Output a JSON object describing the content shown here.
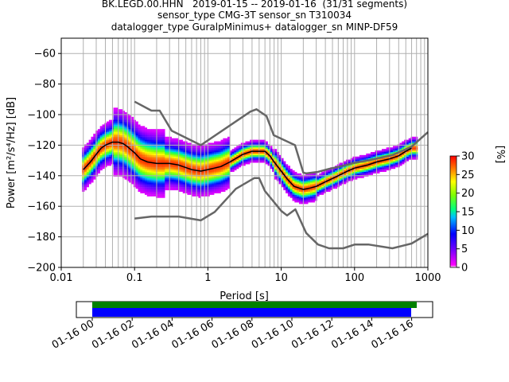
{
  "title_lines": [
    "BK.LEGD.00.HHN   2019-01-15 -- 2019-01-16  (31/31 segments)",
    "sensor_type CMG-3T sensor_sn T310034",
    "datalogger_type GuralpMinimus+ datalogger_sn MINP-DF59"
  ],
  "chart_data": {
    "type": "heatmap",
    "xlabel": "Period [s]",
    "ylabel": "Power [m²/s⁴/Hz] [dB]",
    "xscale": "log",
    "xlim": [
      0.01,
      1000
    ],
    "ylim": [
      -200,
      -50
    ],
    "xticks": [
      0.01,
      0.1,
      1,
      10,
      100,
      1000
    ],
    "xtick_labels": [
      "0.01",
      "0.1",
      "1",
      "10",
      "100",
      "1000"
    ],
    "yticks": [
      -200,
      -180,
      -160,
      -140,
      -120,
      -100,
      -80,
      -60
    ],
    "ytick_labels": [
      "−200",
      "−180",
      "−160",
      "−140",
      "−120",
      "−100",
      "−80",
      "−60"
    ],
    "grid": true,
    "colorbar": {
      "label": "[%]",
      "range": [
        0,
        30
      ],
      "ticks": [
        0,
        5,
        10,
        15,
        20,
        25,
        30
      ],
      "tick_labels": [
        "0",
        "5",
        "10",
        "15",
        "20",
        "25",
        "30"
      ]
    },
    "mode_curve": {
      "period": [
        0.02,
        0.025,
        0.03,
        0.035,
        0.04,
        0.05,
        0.06,
        0.07,
        0.08,
        0.1,
        0.12,
        0.15,
        0.2,
        0.3,
        0.4,
        0.6,
        0.8,
        1.0,
        1.5,
        2.0,
        3.0,
        4.0,
        5.0,
        6.0,
        7.0,
        8.0,
        10.0,
        12.0,
        15.0,
        20.0,
        25.0,
        30.0,
        40.0,
        60.0,
        80.0,
        100.0,
        150.0,
        200.0,
        300.0,
        400.0,
        500.0,
        600.0
      ],
      "power": [
        -136,
        -131,
        -126,
        -122,
        -120,
        -118,
        -118,
        -119,
        -121,
        -125,
        -129,
        -131,
        -132,
        -132,
        -133,
        -136,
        -137,
        -136,
        -134,
        -131,
        -126,
        -124,
        -124,
        -124,
        -127,
        -131,
        -137,
        -142,
        -147,
        -149,
        -148,
        -147,
        -144,
        -140,
        -137,
        -135,
        -133,
        -131,
        -129,
        -127,
        -124,
        -122
      ]
    },
    "reference_curves": [
      {
        "period": [
          0.1,
          0.17,
          0.22,
          0.32,
          0.8,
          3.8,
          4.6,
          6.3,
          7.9,
          15.4,
          20,
          21.9,
          31.6,
          45,
          70,
          101,
          154,
          328,
          600,
          1000
        ],
        "power": [
          -91.5,
          -97.4,
          -97.4,
          -110.5,
          -120,
          -98,
          -96.5,
          -101,
          -113.5,
          -120,
          -138,
          -138.5,
          -137.5,
          -135.5,
          -133.5,
          -131.5,
          -130,
          -126.5,
          -121,
          -111.5
        ]
      },
      {
        "period": [
          0.1,
          0.17,
          0.4,
          0.8,
          1.24,
          2.4,
          4.3,
          5,
          6,
          10,
          12,
          15.6,
          21.9,
          31.6,
          45,
          70,
          101,
          154,
          328,
          600,
          1000
        ],
        "power": [
          -168,
          -166.7,
          -166.7,
          -169.2,
          -163.7,
          -148.6,
          -141.5,
          -141.5,
          -150,
          -163,
          -166,
          -162,
          -177.5,
          -185,
          -187.5,
          -187.5,
          -185,
          -185,
          -187.5,
          -184.4,
          -178
        ]
      }
    ]
  },
  "time_axis": {
    "tick_labels": [
      "01-16 00",
      "01-16 02",
      "01-16 04",
      "01-16 06",
      "01-16 08",
      "01-16 10",
      "01-16 12",
      "01-16 14",
      "01-16 16"
    ],
    "bar_colors": [
      "#008000",
      "#0000ff"
    ]
  }
}
